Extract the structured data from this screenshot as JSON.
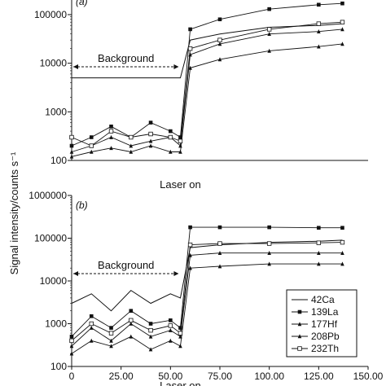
{
  "figure": {
    "ylabel": "Signal intensity/counts s⁻¹",
    "legend": [
      {
        "label": "42Ca",
        "marker": "line"
      },
      {
        "label": "139La",
        "marker": "filled-square"
      },
      {
        "label": "177Hf",
        "marker": "filled-triangle"
      },
      {
        "label": "208Pb",
        "marker": "filled-triangle"
      },
      {
        "label": "232Th",
        "marker": "open-square"
      }
    ]
  },
  "chart_data": [
    {
      "type": "line",
      "panel_label": "(a)",
      "y_scale": "log",
      "ylim": [
        100,
        200000
      ],
      "y_ticks": [
        100,
        1000,
        10000,
        100000
      ],
      "y_tick_labels": [
        "100",
        "1000",
        "10000",
        "100000"
      ],
      "xlim": [
        0,
        150
      ],
      "annotations": [
        {
          "text": "Background",
          "x_from": 0,
          "x_to": 55
        },
        {
          "text": "Laser on",
          "x": 55
        }
      ],
      "series": [
        {
          "name": "42Ca",
          "x": [
            0,
            10,
            20,
            30,
            40,
            50,
            55,
            60,
            75,
            100,
            125,
            137
          ],
          "y": [
            5000,
            5000,
            5000,
            5000,
            5000,
            5000,
            5000,
            30000,
            40000,
            55000,
            60000,
            65000
          ]
        },
        {
          "name": "139La",
          "x": [
            0,
            10,
            20,
            30,
            40,
            50,
            55,
            60,
            75,
            100,
            125,
            137
          ],
          "y": [
            200,
            300,
            500,
            300,
            600,
            400,
            300,
            50000,
            80000,
            130000,
            160000,
            170000
          ]
        },
        {
          "name": "177Hf",
          "x": [
            0,
            10,
            20,
            30,
            40,
            50,
            55,
            60,
            75,
            100,
            125,
            137
          ],
          "y": [
            150,
            200,
            300,
            200,
            250,
            300,
            200,
            15000,
            25000,
            40000,
            45000,
            50000
          ]
        },
        {
          "name": "208Pb",
          "x": [
            0,
            10,
            20,
            30,
            40,
            50,
            55,
            60,
            75,
            100,
            125,
            137
          ],
          "y": [
            120,
            150,
            180,
            150,
            200,
            150,
            150,
            8000,
            12000,
            18000,
            22000,
            25000
          ]
        },
        {
          "name": "232Th",
          "x": [
            0,
            10,
            20,
            30,
            40,
            50,
            55,
            60,
            75,
            100,
            125,
            137
          ],
          "y": [
            300,
            200,
            400,
            300,
            350,
            300,
            250,
            20000,
            30000,
            50000,
            65000,
            70000
          ]
        }
      ]
    },
    {
      "type": "line",
      "panel_label": "(b)",
      "y_scale": "log",
      "ylim": [
        100,
        1000000
      ],
      "y_ticks": [
        100,
        1000,
        10000,
        100000,
        1000000
      ],
      "y_tick_labels": [
        "100",
        "1000",
        "10000",
        "100000",
        "1000000"
      ],
      "xlim": [
        0,
        150
      ],
      "x_ticks": [
        0,
        25,
        50,
        75,
        100,
        125,
        150
      ],
      "x_tick_labels": [
        "0",
        "25.00",
        "50.00",
        "75.00",
        "100.00",
        "125.00",
        "150.00"
      ],
      "annotations": [
        {
          "text": "Background",
          "x_from": 0,
          "x_to": 55
        },
        {
          "text": "Laser on",
          "x": 55
        }
      ],
      "series": [
        {
          "name": "42Ca",
          "x": [
            0,
            10,
            20,
            30,
            40,
            50,
            55,
            60,
            75,
            100,
            125,
            137
          ],
          "y": [
            3000,
            5000,
            2000,
            6000,
            3000,
            5000,
            4000,
            60000,
            70000,
            80000,
            85000,
            90000
          ]
        },
        {
          "name": "139La",
          "x": [
            0,
            10,
            20,
            30,
            40,
            50,
            55,
            60,
            75,
            100,
            125,
            137
          ],
          "y": [
            500,
            1500,
            800,
            2000,
            1000,
            1200,
            800,
            180000,
            180000,
            180000,
            175000,
            175000
          ]
        },
        {
          "name": "177Hf",
          "x": [
            0,
            10,
            20,
            30,
            40,
            50,
            55,
            60,
            75,
            100,
            125,
            137
          ],
          "y": [
            300,
            800,
            400,
            1000,
            500,
            700,
            500,
            40000,
            45000,
            45000,
            45000,
            45000
          ]
        },
        {
          "name": "208Pb",
          "x": [
            0,
            10,
            20,
            30,
            40,
            50,
            55,
            60,
            75,
            100,
            125,
            137
          ],
          "y": [
            200,
            400,
            300,
            500,
            250,
            400,
            300,
            20000,
            22000,
            25000,
            25000,
            25000
          ]
        },
        {
          "name": "232Th",
          "x": [
            0,
            10,
            20,
            30,
            40,
            50,
            55,
            60,
            75,
            100,
            125,
            137
          ],
          "y": [
            400,
            1000,
            600,
            1200,
            700,
            900,
            600,
            70000,
            75000,
            75000,
            78000,
            80000
          ]
        }
      ]
    }
  ]
}
